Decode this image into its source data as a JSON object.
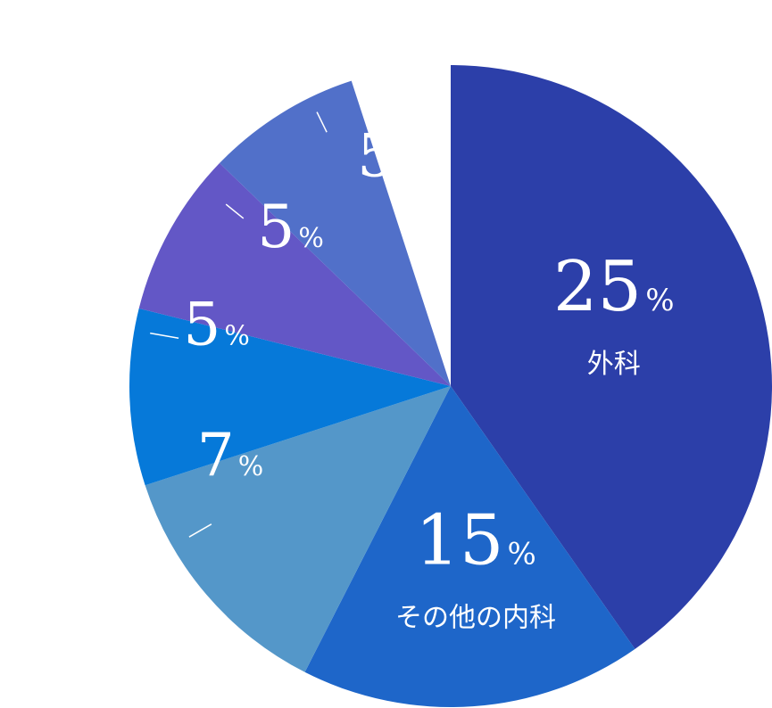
{
  "chart_data": {
    "type": "pie",
    "start": "top",
    "direction": "clockwise",
    "slices": [
      {
        "value": 25,
        "number": "25",
        "suffix": "%",
        "label": "外科",
        "color": "#2c3fa9"
      },
      {
        "value": 15,
        "number": "15",
        "suffix": "%",
        "label": "その他の内科",
        "color": "#1e66c9"
      },
      {
        "value": 7,
        "number": "7",
        "suffix": "%",
        "label": "",
        "color": "#5497c9"
      },
      {
        "value": 5,
        "number": "5",
        "suffix": "%",
        "label": "",
        "color": "#0679d9"
      },
      {
        "value": 5,
        "number": "5",
        "suffix": "%",
        "label": "",
        "color": "#6357c6"
      },
      {
        "value": 5,
        "number": "5",
        "suffix": "%",
        "label": "",
        "color": "#5170c9"
      }
    ]
  }
}
